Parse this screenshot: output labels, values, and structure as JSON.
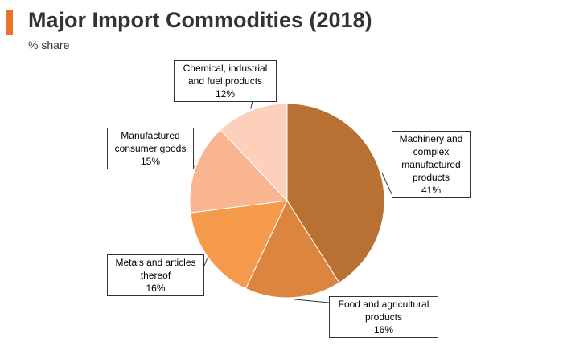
{
  "header": {
    "title": "Major Import Commodities (2018)",
    "subtitle": "% share",
    "accent_color": "#e8742a"
  },
  "chart_data": {
    "type": "pie",
    "title": "Major Import Commodities (2018)",
    "subtitle": "% share",
    "unit": "%",
    "slices": [
      {
        "name": "Machinery and complex manufactured products",
        "label_lines": [
          "Machinery and",
          "complex",
          "manufactured",
          "products"
        ],
        "value": 41,
        "value_label": "41%",
        "color": "#b97033"
      },
      {
        "name": "Food and agricultural products",
        "label_lines": [
          "Food and agricultural",
          "products"
        ],
        "value": 16,
        "value_label": "16%",
        "color": "#dc853f"
      },
      {
        "name": "Metals and articles thereof",
        "label_lines": [
          "Metals and articles",
          "thereof"
        ],
        "value": 16,
        "value_label": "16%",
        "color": "#f5994a"
      },
      {
        "name": "Manufactured consumer goods",
        "label_lines": [
          "Manufactured",
          "consumer goods"
        ],
        "value": 15,
        "value_label": "15%",
        "color": "#f8b590"
      },
      {
        "name": "Chemical, industrial and fuel products",
        "label_lines": [
          "Chemical, industrial",
          "and fuel products"
        ],
        "value": 12,
        "value_label": "12%",
        "color": "#fcd0bb"
      }
    ]
  }
}
